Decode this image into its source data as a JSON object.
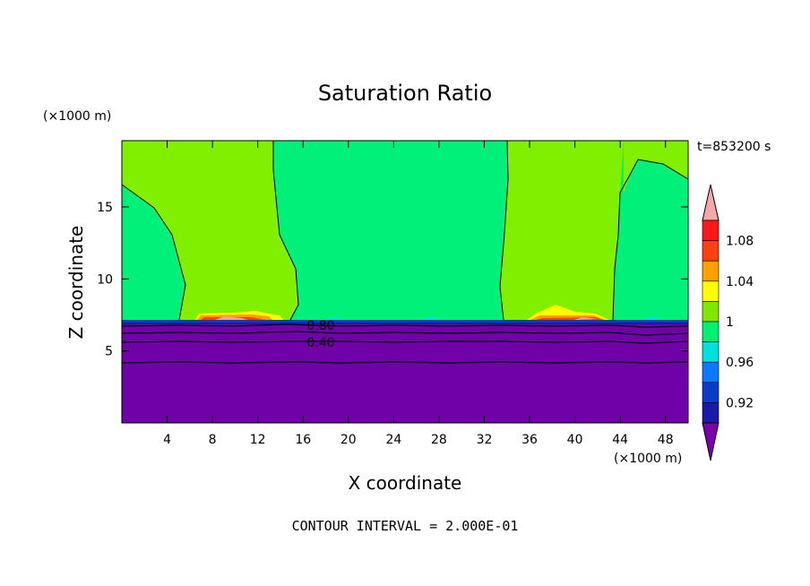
{
  "chart_data": {
    "type": "heatmap",
    "title": "Saturation Ratio",
    "xlabel": "X coordinate",
    "ylabel": "Z coordinate",
    "x_unit": "(×1000 m)",
    "y_unit": "(×1000 m)",
    "time_label": "t=853200 s",
    "footer": "CONTOUR INTERVAL = 2.000E-01",
    "xlim": [
      0,
      50
    ],
    "ylim": [
      0,
      19.6
    ],
    "x_ticks": [
      4,
      8,
      12,
      16,
      20,
      24,
      28,
      32,
      36,
      40,
      44,
      48
    ],
    "y_ticks": [
      5,
      10,
      15
    ],
    "contour_labels": [
      "0.80",
      "0.40"
    ],
    "colorbar": {
      "tick_labels": [
        "1.08",
        "1.04",
        "1",
        "0.96",
        "0.92"
      ],
      "levels": [
        0.9,
        0.92,
        0.94,
        0.96,
        0.98,
        1.0,
        1.02,
        1.04,
        1.06,
        1.08,
        1.1
      ],
      "colors": [
        "#5a1aa0",
        "#1a1aa8",
        "#0a3cc8",
        "#0a78ff",
        "#00e0e0",
        "#00f070",
        "#80e800",
        "#ffff00",
        "#ffa000",
        "#ff4010",
        "#ff1818",
        "#ffa0a0"
      ],
      "under_color": "#7a00aa",
      "over_color": "#f4a8a8"
    },
    "background_color": "#7000a8",
    "regions": {
      "near_saturation_color": "#00f07a",
      "slightly_supersaturated_color": "#80f000"
    }
  }
}
